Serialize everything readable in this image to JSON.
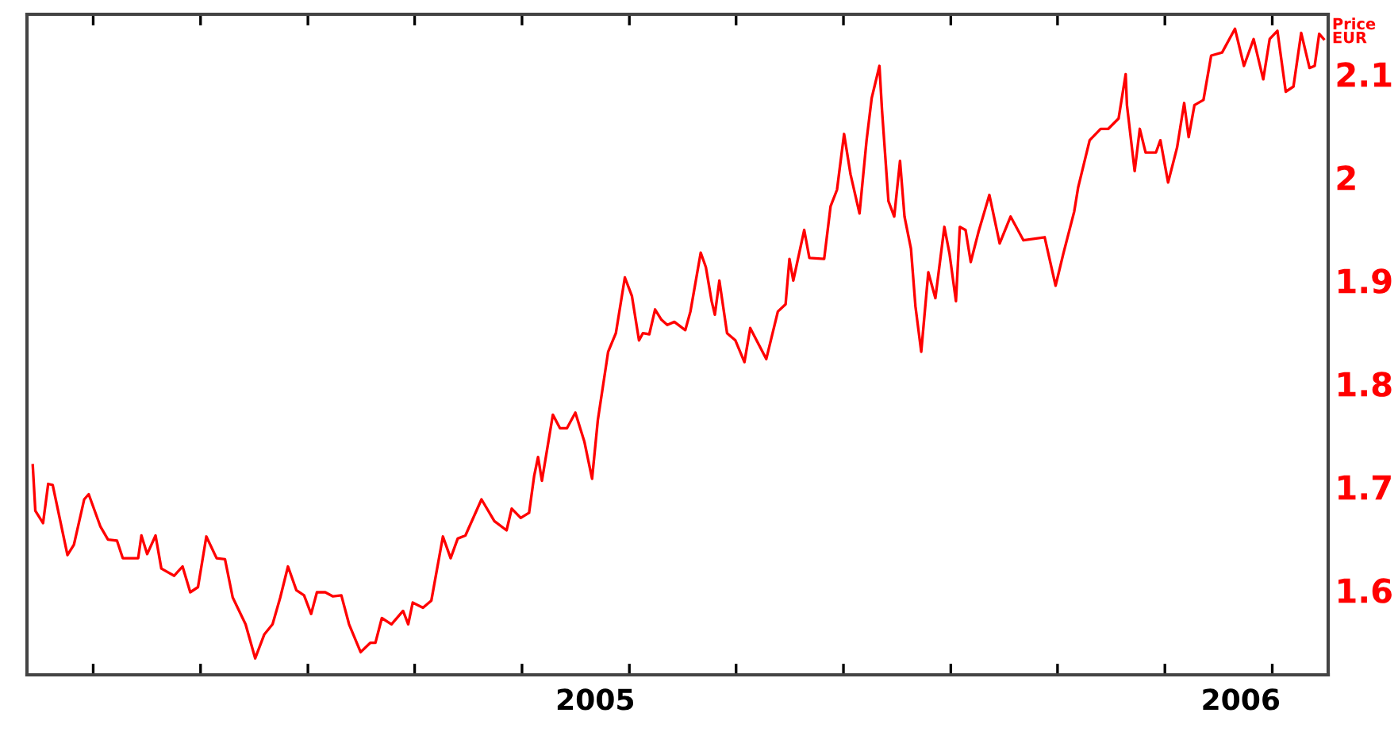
{
  "chart_data": {
    "type": "line",
    "ylabel": "Price\nEUR",
    "x": [
      2004.239,
      2004.243,
      2004.255,
      2004.263,
      2004.27,
      2004.293,
      2004.303,
      2004.319,
      2004.326,
      2004.344,
      2004.356,
      2004.37,
      2004.379,
      2004.403,
      2004.408,
      2004.417,
      2004.43,
      2004.439,
      2004.459,
      2004.472,
      2004.484,
      2004.496,
      2004.509,
      2004.525,
      2004.538,
      2004.55,
      2004.57,
      2004.585,
      2004.599,
      2004.612,
      2004.624,
      2004.636,
      2004.649,
      2004.661,
      2004.672,
      2004.681,
      2004.694,
      2004.706,
      2004.719,
      2004.731,
      2004.749,
      2004.764,
      2004.772,
      2004.782,
      2004.797,
      2004.815,
      2004.823,
      2004.83,
      2004.846,
      2004.859,
      2004.877,
      2004.889,
      2004.9,
      2004.912,
      2004.937,
      2004.957,
      2004.976,
      2004.984,
      2004.998,
      2005.011,
      2005.019,
      2005.025,
      2005.031,
      2005.048,
      2005.059,
      2005.07,
      2005.083,
      2005.097,
      2005.109,
      2005.118,
      2005.134,
      2005.146,
      2005.16,
      2005.171,
      2005.182,
      2005.188,
      2005.198,
      2005.207,
      2005.217,
      2005.226,
      2005.237,
      2005.254,
      2005.262,
      2005.278,
      2005.286,
      2005.295,
      2005.3,
      2005.307,
      2005.319,
      2005.332,
      2005.346,
      2005.355,
      2005.38,
      2005.398,
      2005.41,
      2005.416,
      2005.422,
      2005.439,
      2005.447,
      2005.47,
      2005.48,
      2005.49,
      2005.501,
      2005.511,
      2005.525,
      2005.536,
      2005.544,
      2005.556,
      2005.56,
      2005.57,
      2005.579,
      2005.588,
      2005.595,
      2005.605,
      2005.612,
      2005.621,
      2005.632,
      2005.643,
      2005.657,
      2005.665,
      2005.675,
      2005.681,
      2005.69,
      2005.698,
      2005.71,
      2005.727,
      2005.743,
      2005.76,
      2005.78,
      2005.813,
      2005.83,
      2005.842,
      2005.859,
      2005.865,
      2005.883,
      2005.9,
      2005.912,
      2005.928,
      2005.939,
      2005.941,
      2005.953,
      2005.961,
      2005.97,
      2005.986,
      2005.993,
      2006.005,
      2006.019,
      2006.03,
      2006.037,
      2006.046,
      2006.06,
      2006.072,
      2006.089,
      2006.109,
      2006.123,
      2006.138,
      2006.153,
      2006.163,
      2006.175,
      2006.188,
      2006.2,
      2006.212,
      2006.225,
      2006.233,
      2006.24,
      2006.247
    ],
    "series": [
      {
        "color": "#ff0000",
        "values": [
          1.721,
          1.677,
          1.665,
          1.703,
          1.702,
          1.634,
          1.644,
          1.688,
          1.693,
          1.662,
          1.649,
          1.648,
          1.631,
          1.631,
          1.653,
          1.635,
          1.653,
          1.621,
          1.614,
          1.623,
          1.598,
          1.603,
          1.652,
          1.631,
          1.63,
          1.593,
          1.567,
          1.534,
          1.557,
          1.567,
          1.593,
          1.623,
          1.6,
          1.595,
          1.577,
          1.598,
          1.598,
          1.594,
          1.595,
          1.567,
          1.54,
          1.549,
          1.549,
          1.573,
          1.567,
          1.58,
          1.567,
          1.588,
          1.583,
          1.59,
          1.652,
          1.631,
          1.65,
          1.653,
          1.688,
          1.667,
          1.658,
          1.679,
          1.67,
          1.675,
          1.711,
          1.729,
          1.706,
          1.77,
          1.757,
          1.757,
          1.772,
          1.744,
          1.708,
          1.765,
          1.831,
          1.849,
          1.903,
          1.885,
          1.842,
          1.849,
          1.848,
          1.872,
          1.862,
          1.857,
          1.86,
          1.852,
          1.87,
          1.927,
          1.913,
          1.88,
          1.867,
          1.9,
          1.849,
          1.842,
          1.821,
          1.854,
          1.824,
          1.87,
          1.877,
          1.921,
          1.9,
          1.949,
          1.922,
          1.921,
          1.972,
          1.988,
          2.042,
          2.003,
          1.965,
          2.036,
          2.077,
          2.108,
          2.065,
          1.977,
          1.962,
          2.016,
          1.962,
          1.931,
          1.875,
          1.831,
          1.908,
          1.883,
          1.952,
          1.926,
          1.88,
          1.952,
          1.949,
          1.918,
          1.947,
          1.983,
          1.936,
          1.962,
          1.939,
          1.942,
          1.895,
          1.926,
          1.967,
          1.99,
          2.036,
          2.047,
          2.047,
          2.057,
          2.1,
          2.07,
          2.006,
          2.047,
          2.024,
          2.024,
          2.036,
          1.995,
          2.029,
          2.072,
          2.039,
          2.07,
          2.075,
          2.118,
          2.121,
          2.144,
          2.108,
          2.134,
          2.095,
          2.134,
          2.142,
          2.083,
          2.088,
          2.14,
          2.106,
          2.108,
          2.139,
          2.134
        ]
      }
    ],
    "xlim": [
      2004.23,
      2006.254
    ],
    "ylim": [
      1.518,
      2.158
    ],
    "xticks": [
      {
        "value": 2004.333,
        "label": null
      },
      {
        "value": 2004.5,
        "label": null
      },
      {
        "value": 2004.667,
        "label": null
      },
      {
        "value": 2004.833,
        "label": null
      },
      {
        "value": 2005.0,
        "label": null
      },
      {
        "value": 2005.114,
        "label": "2005"
      },
      {
        "value": 2005.167,
        "label": null
      },
      {
        "value": 2005.333,
        "label": null
      },
      {
        "value": 2005.5,
        "label": null
      },
      {
        "value": 2005.667,
        "label": null
      },
      {
        "value": 2005.833,
        "label": null
      },
      {
        "value": 2006.0,
        "label": null
      },
      {
        "value": 2006.118,
        "label": "2006"
      },
      {
        "value": 2006.167,
        "label": null
      }
    ],
    "yticks": [
      1.6,
      1.7,
      1.8,
      1.9,
      2,
      2.1
    ],
    "grid": false,
    "marker": "none",
    "line_style": "solid"
  }
}
